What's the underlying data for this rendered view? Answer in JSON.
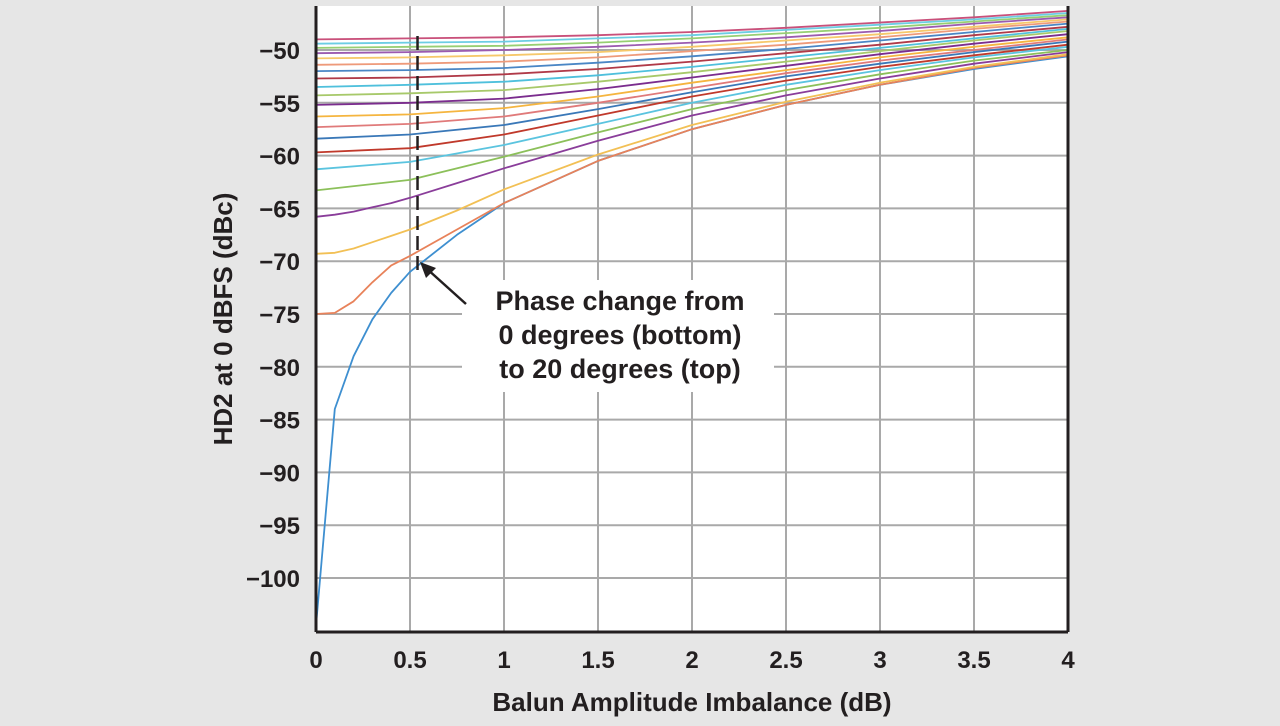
{
  "chart_data": {
    "type": "line",
    "xlabel": "Balun Amplitude Imbalance (dB)",
    "ylabel": "HD2 at 0 dBFS (dBc)",
    "xlim": [
      0,
      4
    ],
    "ylim": [
      -105,
      -46
    ],
    "x_ticks": [
      0,
      0.5,
      1,
      1.5,
      2,
      2.5,
      3,
      3.5,
      4
    ],
    "x_tick_labels": [
      "0",
      "0.5",
      "1",
      "1.5",
      "2",
      "2.5",
      "3",
      "3.5",
      "4"
    ],
    "y_ticks": [
      -50,
      -55,
      -60,
      -65,
      -70,
      -75,
      -80,
      -85,
      -90,
      -95,
      -100
    ],
    "y_tick_labels": [
      "−50",
      "−55",
      "−60",
      "−65",
      "−70",
      "−75",
      "−80",
      "−85",
      "−90",
      "−95",
      "−100"
    ],
    "grid": true,
    "legend": "none",
    "annotation": {
      "lines": [
        "Phase change from",
        "0 degrees (bottom)",
        "to 20 degrees (top)"
      ],
      "marker_x": 0.54
    },
    "series": [
      {
        "color": "#3e8fd0",
        "x": [
          0,
          0.1,
          0.2,
          0.3,
          0.4,
          0.5,
          0.75,
          1,
          1.5,
          2,
          2.5,
          3,
          3.5,
          4
        ],
        "y": [
          -104.5,
          -84,
          -79,
          -75.5,
          -73,
          -71,
          -67.5,
          -64.5,
          -60.5,
          -57.5,
          -55.2,
          -53.3,
          -51.8,
          -50.6
        ]
      },
      {
        "color": "#e8825a",
        "x": [
          0,
          0.1,
          0.2,
          0.3,
          0.4,
          0.5,
          0.75,
          1,
          1.5,
          2,
          2.5,
          3,
          3.5,
          4
        ],
        "y": [
          -75,
          -74.9,
          -73.8,
          -72,
          -70.4,
          -69.5,
          -67,
          -64.5,
          -60.5,
          -57.5,
          -55.2,
          -53.3,
          -51.7,
          -50.5
        ]
      },
      {
        "color": "#f2c055",
        "x": [
          0,
          0.1,
          0.2,
          0.3,
          0.4,
          0.5,
          0.75,
          1,
          1.5,
          2,
          2.5,
          3,
          3.5,
          4
        ],
        "y": [
          -69.3,
          -69.2,
          -68.8,
          -68.2,
          -67.6,
          -67,
          -65.2,
          -63.2,
          -59.9,
          -57.1,
          -54.9,
          -53.1,
          -51.6,
          -50.4
        ]
      },
      {
        "color": "#8a3d9a",
        "x": [
          0,
          0.1,
          0.2,
          0.3,
          0.4,
          0.5,
          0.75,
          1,
          1.5,
          2,
          2.5,
          3,
          3.5,
          4
        ],
        "y": [
          -65.8,
          -65.6,
          -65.3,
          -64.9,
          -64.5,
          -64,
          -62.6,
          -61.2,
          -58.6,
          -56.2,
          -54.3,
          -52.7,
          -51.3,
          -50.2
        ]
      },
      {
        "color": "#8cc05a",
        "x": [
          0,
          0.5,
          1,
          1.5,
          2,
          2.5,
          3,
          3.5,
          4
        ],
        "y": [
          -63.3,
          -62.3,
          -60.1,
          -57.8,
          -55.6,
          -53.8,
          -52.3,
          -51,
          -50
        ]
      },
      {
        "color": "#5bc4df",
        "x": [
          0,
          0.5,
          1,
          1.5,
          2,
          2.5,
          3,
          3.5,
          4
        ],
        "y": [
          -61.3,
          -60.6,
          -59,
          -57,
          -55,
          -53.3,
          -51.9,
          -50.7,
          -49.7
        ]
      },
      {
        "color": "#c0392b",
        "x": [
          0,
          0.5,
          1,
          1.5,
          2,
          2.5,
          3,
          3.5,
          4
        ],
        "y": [
          -59.7,
          -59.3,
          -58,
          -56.2,
          -54.4,
          -52.9,
          -51.6,
          -50.5,
          -49.5
        ]
      },
      {
        "color": "#3a78b8",
        "x": [
          0,
          0.5,
          1,
          1.5,
          2,
          2.5,
          3,
          3.5,
          4
        ],
        "y": [
          -58.4,
          -58,
          -57.1,
          -55.6,
          -54,
          -52.5,
          -51.3,
          -50.2,
          -49.2
        ]
      },
      {
        "color": "#e07a7a",
        "x": [
          0,
          0.5,
          1,
          1.5,
          2,
          2.5,
          3,
          3.5,
          4
        ],
        "y": [
          -57.3,
          -57,
          -56.3,
          -55,
          -53.6,
          -52.2,
          -51,
          -50,
          -49
        ]
      },
      {
        "color": "#f5b53f",
        "x": [
          0,
          0.5,
          1,
          1.5,
          2,
          2.5,
          3,
          3.5,
          4
        ],
        "y": [
          -56.3,
          -56.1,
          -55.5,
          -54.4,
          -53.1,
          -51.9,
          -50.7,
          -49.7,
          -48.8
        ]
      },
      {
        "color": "#7b2d8e",
        "x": [
          0,
          0.5,
          1,
          1.5,
          2,
          2.5,
          3,
          3.5,
          4
        ],
        "y": [
          -55.2,
          -55,
          -54.6,
          -53.7,
          -52.6,
          -51.5,
          -50.4,
          -49.4,
          -48.5
        ]
      },
      {
        "color": "#a7c96a",
        "x": [
          0,
          0.5,
          1,
          1.5,
          2,
          2.5,
          3,
          3.5,
          4
        ],
        "y": [
          -54.3,
          -54.1,
          -53.8,
          -53,
          -52.1,
          -51.1,
          -50.1,
          -49.1,
          -48.2
        ]
      },
      {
        "color": "#4fc0dc",
        "x": [
          0,
          0.5,
          1,
          1.5,
          2,
          2.5,
          3,
          3.5,
          4
        ],
        "y": [
          -53.5,
          -53.3,
          -53,
          -52.4,
          -51.6,
          -50.7,
          -49.8,
          -48.9,
          -48
        ]
      },
      {
        "color": "#b03a48",
        "x": [
          0,
          0.5,
          1,
          1.5,
          2,
          2.5,
          3,
          3.5,
          4
        ],
        "y": [
          -52.7,
          -52.6,
          -52.3,
          -51.8,
          -51.1,
          -50.3,
          -49.5,
          -48.6,
          -47.8
        ]
      },
      {
        "color": "#4a86c5",
        "x": [
          0,
          0.5,
          1,
          1.5,
          2,
          2.5,
          3,
          3.5,
          4
        ],
        "y": [
          -52,
          -51.9,
          -51.7,
          -51.2,
          -50.6,
          -49.9,
          -49.1,
          -48.3,
          -47.5
        ]
      },
      {
        "color": "#ee9a7a",
        "x": [
          0,
          0.5,
          1,
          1.5,
          2,
          2.5,
          3,
          3.5,
          4
        ],
        "y": [
          -51.4,
          -51.3,
          -51.1,
          -50.7,
          -50.1,
          -49.5,
          -48.8,
          -48,
          -47.3
        ]
      },
      {
        "color": "#f6c86a",
        "x": [
          0,
          0.5,
          1,
          1.5,
          2,
          2.5,
          3,
          3.5,
          4
        ],
        "y": [
          -50.8,
          -50.7,
          -50.5,
          -50.2,
          -49.7,
          -49.1,
          -48.5,
          -47.8,
          -47.1
        ]
      },
      {
        "color": "#9b5bb0",
        "x": [
          0,
          0.5,
          1,
          1.5,
          2,
          2.5,
          3,
          3.5,
          4
        ],
        "y": [
          -50.3,
          -50.2,
          -50,
          -49.7,
          -49.3,
          -48.8,
          -48.2,
          -47.5,
          -46.9
        ]
      },
      {
        "color": "#97cf73",
        "x": [
          0,
          0.5,
          1,
          1.5,
          2,
          2.5,
          3,
          3.5,
          4
        ],
        "y": [
          -49.8,
          -49.7,
          -49.6,
          -49.3,
          -48.9,
          -48.4,
          -47.9,
          -47.3,
          -46.7
        ]
      },
      {
        "color": "#6ccde3",
        "x": [
          0,
          0.5,
          1,
          1.5,
          2,
          2.5,
          3,
          3.5,
          4
        ],
        "y": [
          -49.4,
          -49.3,
          -49.2,
          -48.9,
          -48.6,
          -48.1,
          -47.6,
          -47.1,
          -46.5
        ]
      },
      {
        "color": "#c9507a",
        "x": [
          0,
          0.5,
          1,
          1.5,
          2,
          2.5,
          3,
          3.5,
          4
        ],
        "y": [
          -49,
          -48.9,
          -48.8,
          -48.6,
          -48.3,
          -47.9,
          -47.4,
          -46.9,
          -46.3
        ]
      }
    ]
  }
}
